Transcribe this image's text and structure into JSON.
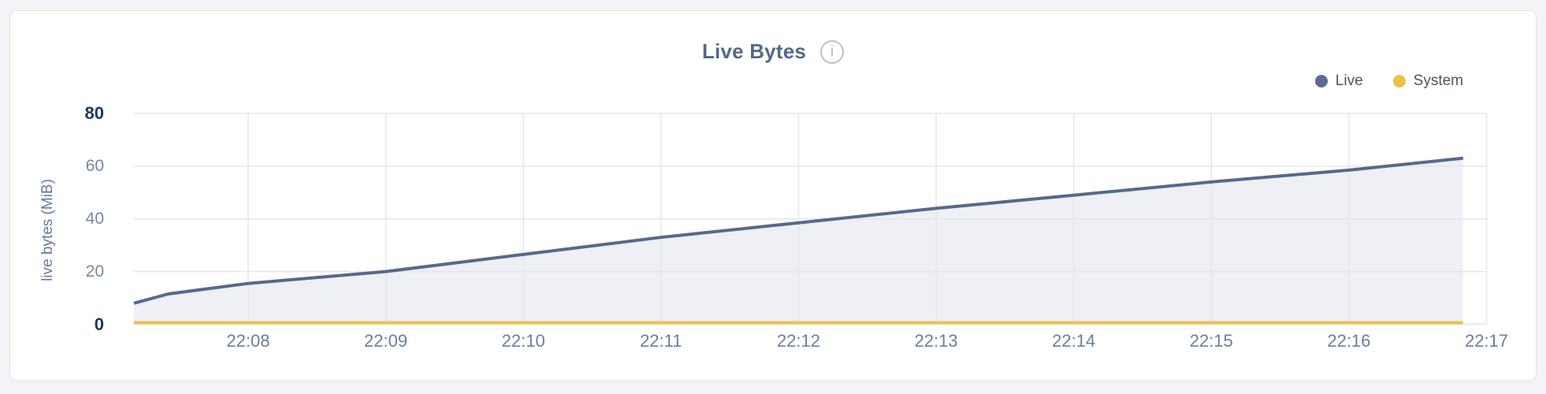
{
  "page": {
    "background": "#f3f5f9"
  },
  "card": {
    "title": "Live Bytes",
    "info_icon_glyph": "i"
  },
  "legend": {
    "position": "top-right",
    "items": [
      {
        "label": "Live",
        "color": "#5d6b94"
      },
      {
        "label": "System",
        "color": "#eac14b"
      }
    ]
  },
  "chart_data": {
    "type": "area",
    "title": "Live Bytes",
    "xlabel": "",
    "ylabel": "live bytes (MiB)",
    "ylim": [
      0,
      80
    ],
    "grid": true,
    "legend_position": "top-right",
    "y_ticks": [
      {
        "value": 0,
        "label": "0",
        "bold": true
      },
      {
        "value": 20,
        "label": "20",
        "bold": false
      },
      {
        "value": 40,
        "label": "40",
        "bold": false
      },
      {
        "value": 60,
        "label": "60",
        "bold": false
      },
      {
        "value": 80,
        "label": "80",
        "bold": true
      }
    ],
    "x_ticks": [
      {
        "t": 8,
        "label": "22:08"
      },
      {
        "t": 9,
        "label": "22:09"
      },
      {
        "t": 10,
        "label": "22:10"
      },
      {
        "t": 11,
        "label": "22:11"
      },
      {
        "t": 12,
        "label": "22:12"
      },
      {
        "t": 13,
        "label": "22:13"
      },
      {
        "t": 14,
        "label": "22:14"
      },
      {
        "t": 15,
        "label": "22:15"
      },
      {
        "t": 16,
        "label": "22:16"
      },
      {
        "t": 17,
        "label": "22:17"
      }
    ],
    "x_unit": "minutes after 22:00",
    "x_range_minutes": [
      7.17,
      17
    ],
    "series": [
      {
        "name": "Live",
        "color": "#57698b",
        "fill": "#eef0f6",
        "points": [
          [
            7.17,
            8
          ],
          [
            7.42,
            11.5
          ],
          [
            8,
            15.5
          ],
          [
            9,
            20
          ],
          [
            10,
            26.5
          ],
          [
            11,
            33
          ],
          [
            12,
            38.5
          ],
          [
            13,
            44
          ],
          [
            14,
            49
          ],
          [
            15,
            54
          ],
          [
            16,
            58.5
          ],
          [
            16.83,
            63
          ]
        ]
      },
      {
        "name": "System",
        "color": "#ecc24e",
        "fill": null,
        "points": [
          [
            7.17,
            0.6
          ],
          [
            16.83,
            0.6
          ]
        ]
      }
    ]
  }
}
